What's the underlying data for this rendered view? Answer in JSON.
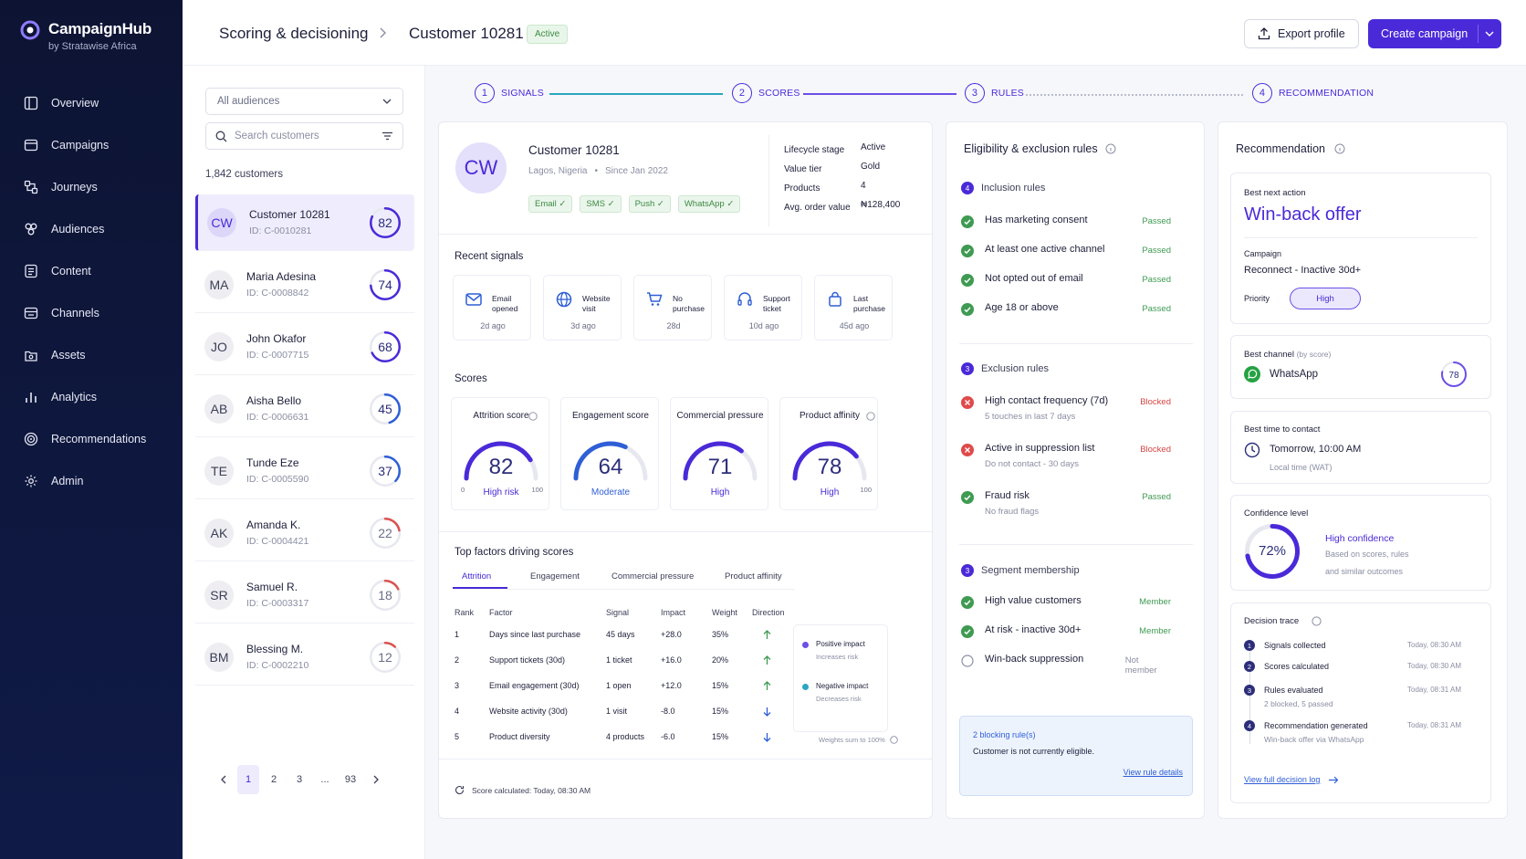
{
  "brand": {
    "name": "CampaignHub",
    "sub": "by Stratawise Africa"
  },
  "nav": [
    {
      "label": "Overview",
      "icon": "overview-icon"
    },
    {
      "label": "Campaigns",
      "icon": "campaigns-icon"
    },
    {
      "label": "Journeys",
      "icon": "journeys-icon"
    },
    {
      "label": "Audiences",
      "icon": "audiences-icon"
    },
    {
      "label": "Content",
      "icon": "content-icon"
    },
    {
      "label": "Channels",
      "icon": "channels-icon"
    },
    {
      "label": "Assets",
      "icon": "assets-icon"
    },
    {
      "label": "Analytics",
      "icon": "analytics-icon"
    },
    {
      "label": "Recommendations",
      "icon": "recommendations-icon"
    },
    {
      "label": "Admin",
      "icon": "gear-icon"
    }
  ],
  "header": {
    "crumb1": "Scoring & decisioning",
    "crumb2": "Customer 10281",
    "status": "Active",
    "export": "Export profile",
    "create": "Create campaign"
  },
  "list": {
    "filter": "All audiences",
    "search_placeholder": "Search customers",
    "count": "1,842 customers",
    "customers": [
      {
        "initials": "CW",
        "name": "Customer 10281",
        "id": "ID: C-0010281",
        "score": "82",
        "level": 0.82,
        "color": "#4a2ad8"
      },
      {
        "initials": "MA",
        "name": "Maria Adesina",
        "id": "ID: C-0008842",
        "score": "74",
        "level": 0.74,
        "color": "#4a2ad8"
      },
      {
        "initials": "JO",
        "name": "John Okafor",
        "id": "ID: C-0007715",
        "score": "68",
        "level": 0.68,
        "color": "#4a2ad8"
      },
      {
        "initials": "AB",
        "name": "Aisha Bello",
        "id": "ID: C-0006631",
        "score": "45",
        "level": 0.45,
        "color": "#2f5fd6"
      },
      {
        "initials": "TE",
        "name": "Tunde Eze",
        "id": "ID: C-0005590",
        "score": "37",
        "level": 0.37,
        "color": "#2f5fd6"
      },
      {
        "initials": "AK",
        "name": "Amanda K.",
        "id": "ID: C-0004421",
        "score": "22",
        "level": 0.22,
        "color": "#d9534f"
      },
      {
        "initials": "SR",
        "name": "Samuel R.",
        "id": "ID: C-0003317",
        "score": "18",
        "level": 0.18,
        "color": "#d9534f"
      },
      {
        "initials": "BM",
        "name": "Blessing M.",
        "id": "ID: C-0002210",
        "score": "12",
        "level": 0.12,
        "color": "#d9534f"
      }
    ],
    "pages": [
      "1",
      "2",
      "3",
      "...",
      "93"
    ]
  },
  "steps": [
    {
      "n": "1",
      "label": "SIGNALS"
    },
    {
      "n": "2",
      "label": "SCORES"
    },
    {
      "n": "3",
      "label": "RULES"
    },
    {
      "n": "4",
      "label": "RECOMMENDATION"
    }
  ],
  "profile": {
    "initials": "CW",
    "name": "Customer 10281",
    "location": "Lagos, Nigeria",
    "since": "Since Jan 2022",
    "channels": [
      "Email",
      "SMS",
      "Push",
      "WhatsApp"
    ],
    "facts": [
      {
        "k": "Lifecycle stage",
        "v": "Active"
      },
      {
        "k": "Value tier",
        "v": "Gold"
      },
      {
        "k": "Products",
        "v": "4"
      },
      {
        "k": "Avg. order value",
        "v": "₦128,400"
      }
    ]
  },
  "signals": {
    "title": "Recent signals",
    "items": [
      {
        "label": "Email opened",
        "ago": "2d ago",
        "icon": "mail-icon"
      },
      {
        "label": "Website visit",
        "ago": "3d ago",
        "icon": "globe-icon"
      },
      {
        "label": "No purchase",
        "ago": "28d",
        "icon": "cart-icon"
      },
      {
        "label": "Support ticket",
        "ago": "10d ago",
        "icon": "headset-icon"
      },
      {
        "label": "Last purchase",
        "ago": "45d ago",
        "icon": "bag-icon"
      }
    ]
  },
  "scores": {
    "title": "Scores",
    "items": [
      {
        "label": "Attrition score",
        "value": "82",
        "level": 0.82,
        "desc": "High risk",
        "min": "0",
        "max": "100",
        "color": "#4a2ad8"
      },
      {
        "label": "Engagement score",
        "value": "64",
        "level": 0.64,
        "desc": "Moderate",
        "min": "",
        "max": "",
        "color": "#2f5fd6"
      },
      {
        "label": "Commercial pressure",
        "value": "71",
        "level": 0.71,
        "desc": "High",
        "min": "",
        "max": "",
        "color": "#4a2ad8"
      },
      {
        "label": "Product affinity",
        "value": "78",
        "level": 0.78,
        "desc": "High",
        "min": "",
        "max": "100",
        "color": "#4a2ad8"
      }
    ]
  },
  "factors": {
    "title": "Top factors driving scores",
    "tabs": [
      "Attrition",
      "Engagement",
      "Commercial pressure",
      "Product affinity"
    ],
    "headers": [
      "Rank",
      "Factor",
      "Signal",
      "Impact",
      "Weight",
      "Direction"
    ],
    "rows": [
      {
        "rank": "1",
        "factor": "Days since last purchase",
        "signal": "45 days",
        "impact": "+28.0",
        "weight": "35%",
        "dir": "up"
      },
      {
        "rank": "2",
        "factor": "Support tickets (30d)",
        "signal": "1 ticket",
        "impact": "+16.0",
        "weight": "20%",
        "dir": "up"
      },
      {
        "rank": "3",
        "factor": "Email engagement (30d)",
        "signal": "1 open",
        "impact": "+12.0",
        "weight": "15%",
        "dir": "up"
      },
      {
        "rank": "4",
        "factor": "Website activity (30d)",
        "signal": "1 visit",
        "impact": "-8.0",
        "weight": "15%",
        "dir": "down"
      },
      {
        "rank": "5",
        "factor": "Product diversity",
        "signal": "4 products",
        "impact": "-6.0",
        "weight": "15%",
        "dir": "down"
      }
    ],
    "legend": {
      "pos": "Positive impact",
      "pos_sub": "Increases risk",
      "neg": "Negative impact",
      "neg_sub": "Decreases risk",
      "note": "Weights sum to 100%"
    },
    "footer": "Score calculated: Today, 08:30 AM"
  },
  "rules": {
    "title": "Eligibility & exclusion rules",
    "inclusion": {
      "n": "4",
      "title": "Inclusion rules",
      "items": [
        {
          "label": "Has marketing consent",
          "status": "Passed"
        },
        {
          "label": "At least one active channel",
          "status": "Passed"
        },
        {
          "label": "Not opted out of email",
          "status": "Passed"
        },
        {
          "label": "Age 18 or above",
          "status": "Passed"
        }
      ]
    },
    "exclusion": {
      "n": "3",
      "title": "Exclusion rules",
      "items": [
        {
          "label": "High contact frequency (7d)",
          "sub": "5 touches in last 7 days",
          "status": "Blocked"
        },
        {
          "label": "Active in suppression list",
          "sub": "Do not contact - 30 days",
          "status": "Blocked"
        },
        {
          "label": "Fraud risk",
          "sub": "No fraud flags",
          "status": "Passed"
        }
      ]
    },
    "segment": {
      "n": "3",
      "title": "Segment membership",
      "items": [
        {
          "label": "High value customers",
          "status": "Member"
        },
        {
          "label": "At risk - inactive 30d+",
          "status": "Member"
        },
        {
          "label": "Win-back suppression",
          "status": "Not member"
        }
      ]
    },
    "alert": {
      "title": "2 blocking rule(s)",
      "text": "Customer is not currently eligible.",
      "link": "View rule details"
    }
  },
  "reco": {
    "title": "Recommendation",
    "best_label": "Best next action",
    "best": "Win-back offer",
    "campaign_label": "Campaign",
    "campaign": "Reconnect - Inactive 30d+",
    "priority_label": "Priority",
    "priority": "High",
    "channel_label": "Best channel",
    "channel_sub": "(by score)",
    "channel": "WhatsApp",
    "channel_score": "78",
    "channel_level": 0.78,
    "time_label": "Best time to contact",
    "time": "Tomorrow, 10:00 AM",
    "time_sub": "Local time (WAT)",
    "conf_label": "Confidence level",
    "conf": "72%",
    "conf_level": 0.72,
    "conf_title": "High confidence",
    "conf_sub1": "Based on scores, rules",
    "conf_sub2": "and similar outcomes",
    "trace_label": "Decision trace",
    "trace": [
      {
        "n": "1",
        "label": "Signals collected",
        "sub": "",
        "time": "Today, 08:30 AM"
      },
      {
        "n": "2",
        "label": "Scores calculated",
        "sub": "",
        "time": "Today, 08:30 AM"
      },
      {
        "n": "3",
        "label": "Rules evaluated",
        "sub": "2 blocked, 5 passed",
        "time": "Today, 08:31 AM"
      },
      {
        "n": "4",
        "label": "Recommendation generated",
        "sub": "Win-back offer via WhatsApp",
        "time": "Today, 08:31 AM"
      }
    ],
    "trace_link": "View full decision log"
  }
}
